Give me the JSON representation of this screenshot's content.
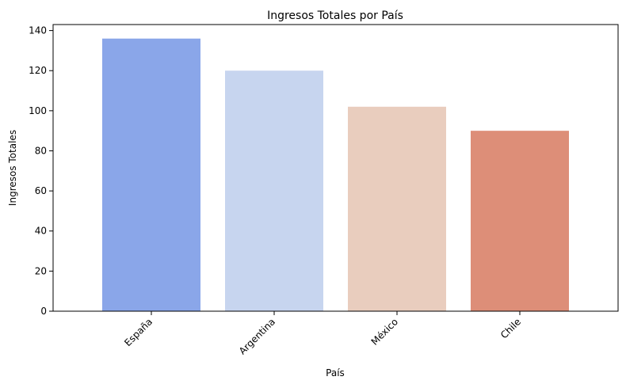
{
  "chart_data": {
    "type": "bar",
    "title": "Ingresos Totales por País",
    "xlabel": "País",
    "ylabel": "Ingresos Totales",
    "categories": [
      "España",
      "Argentina",
      "México",
      "Chile"
    ],
    "values": [
      136,
      120,
      102,
      90
    ],
    "colors": [
      "#8aa6e9",
      "#c7d5ef",
      "#e9cdbe",
      "#dd8e78"
    ],
    "ylim": [
      0,
      143
    ],
    "yticks": [
      0,
      20,
      40,
      60,
      80,
      100,
      120,
      140
    ],
    "grid": false,
    "legend": "none"
  }
}
